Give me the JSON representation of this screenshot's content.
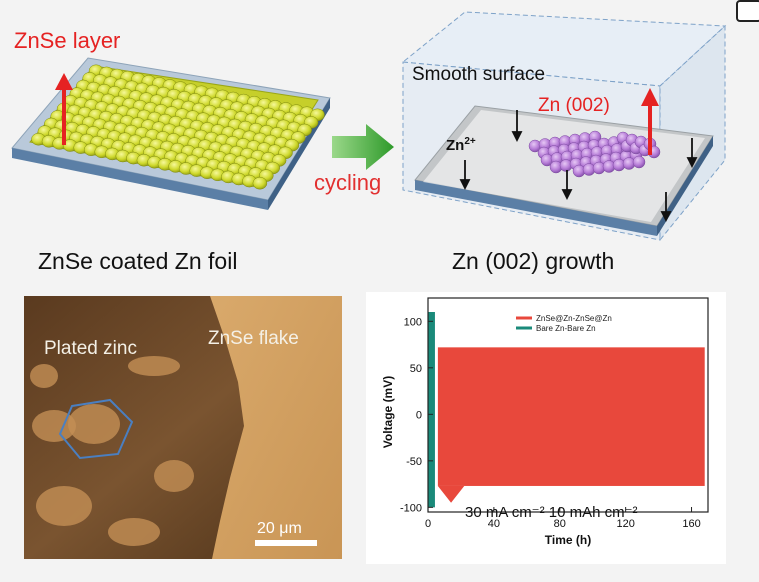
{
  "panels": {
    "a": {
      "arrow_label": "ZnSe layer",
      "caption": "ZnSe coated Zn foil"
    },
    "transition": {
      "label": "cycling"
    },
    "b": {
      "box_label": "Smooth surface",
      "arrow_label": "Zn (002)",
      "ion_label": "Zn",
      "ion_charge": "2+",
      "caption": "Zn (002) growth"
    },
    "c": {
      "label_left": "Plated zinc",
      "label_right": "ZnSe flake",
      "scale_bar": "20 μm"
    }
  },
  "chart_data": {
    "type": "line",
    "xlabel": "Time (h)",
    "ylabel": "Voltage (mV)",
    "xlim": [
      0,
      170
    ],
    "ylim": [
      -105,
      110
    ],
    "xticks": [
      "0",
      "40",
      "80",
      "120",
      "160"
    ],
    "yticks": [
      "100",
      "50",
      "0",
      "-50",
      "-100"
    ],
    "annotation": "30 mA cm⁻² 10 mAh cm⁻²",
    "legend_position": "top-right",
    "series": [
      {
        "name": "ZnSe@Zn-ZnSe@Zn",
        "color": "#e8483c",
        "t_start": 6,
        "t_end": 168,
        "upper_mv": 72,
        "lower_mv": -77,
        "initial_dip_mv": -95
      },
      {
        "name": "Bare Zn-Bare Zn",
        "color": "#1a8a7a",
        "t_start": 0,
        "t_end": 3,
        "upper_mv": 110,
        "lower_mv": -100
      }
    ]
  },
  "colors": {
    "znse_yellow": "#d6e03a",
    "zn_purple": "#b57ad6",
    "arrow_red": "#e52222",
    "cycling_text": "#e23030",
    "cycling_arrow": "#4caf3c",
    "sem_dark": "#6b4a2a",
    "sem_light": "#d9a86a"
  }
}
